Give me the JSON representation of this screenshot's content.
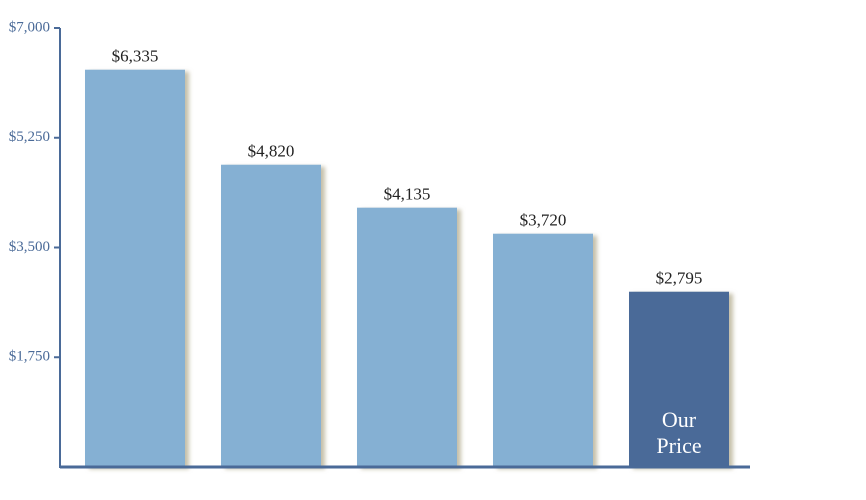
{
  "chart_data": {
    "type": "bar",
    "categories": [
      null,
      null,
      null,
      null,
      "Our Price"
    ],
    "values": [
      6335,
      4820,
      4135,
      3720,
      2795
    ],
    "value_labels": [
      "$6,335",
      "$4,820",
      "$4,135",
      "$3,720",
      "$2,795"
    ],
    "colors": [
      "#85b0d3",
      "#85b0d3",
      "#85b0d3",
      "#85b0d3",
      "#4a6a98"
    ],
    "axis_color": "#4a6a98",
    "ylim": [
      0,
      7000
    ],
    "yticks": [
      {
        "value": 1750,
        "label": "$1,750"
      },
      {
        "value": 3500,
        "label": "$3,500"
      },
      {
        "value": 5250,
        "label": "$5,250"
      },
      {
        "value": 7000,
        "label": "$7,000"
      }
    ],
    "grid": false
  }
}
